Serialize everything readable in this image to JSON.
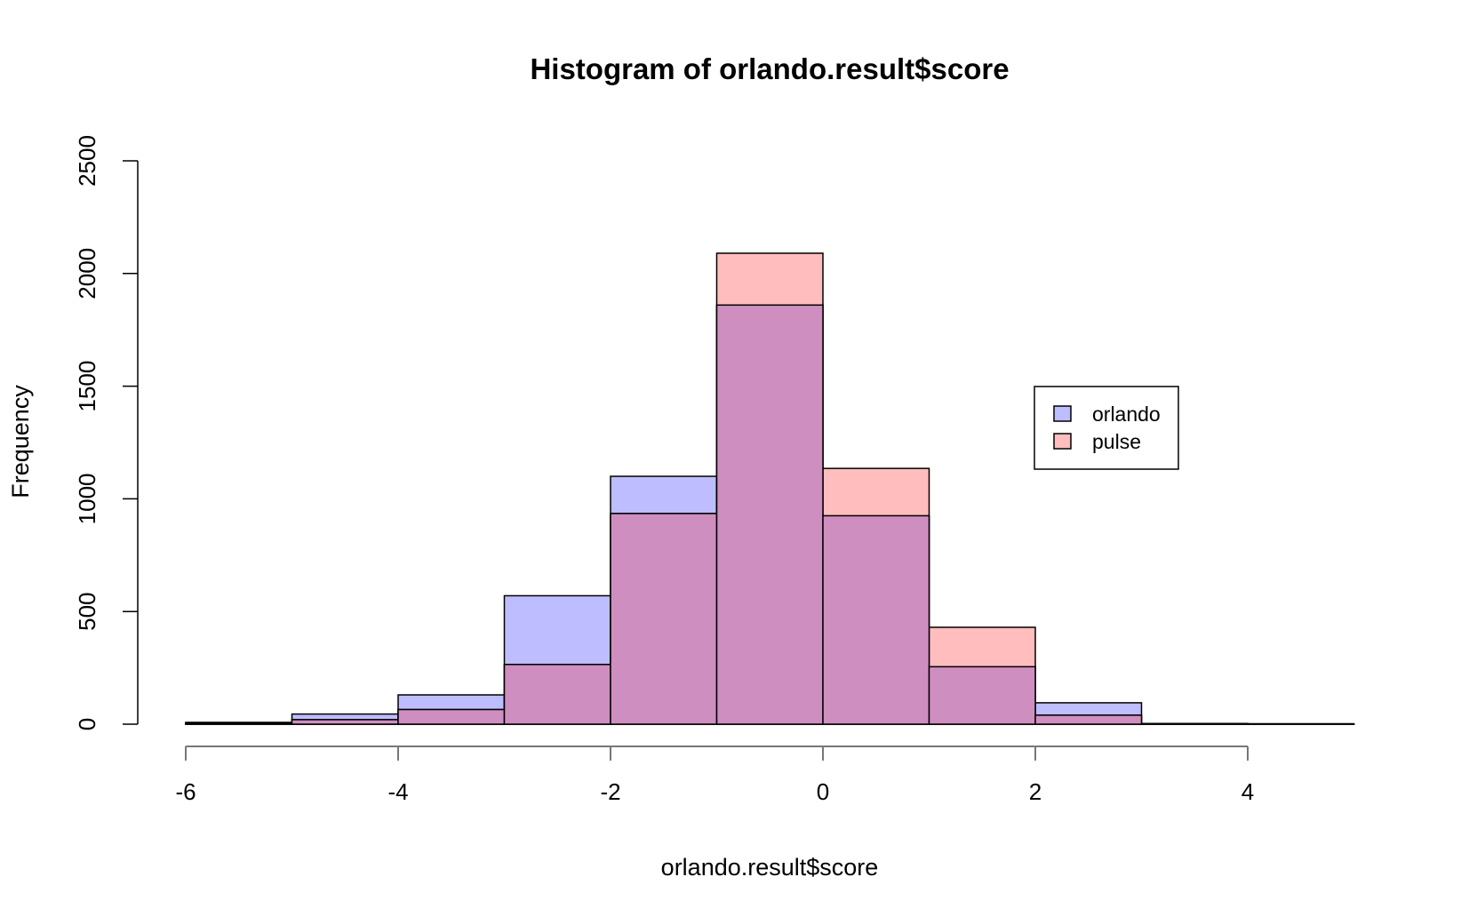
{
  "chart_data": {
    "type": "bar",
    "title": "Histogram of orlando.result$score",
    "xlabel": "orlando.result$score",
    "ylabel": "Frequency",
    "xlim": [
      -6,
      5
    ],
    "ylim": [
      0,
      2500
    ],
    "x_ticks": [
      "-6",
      "-4",
      "-2",
      "0",
      "2",
      "4"
    ],
    "y_ticks": [
      "0",
      "500",
      "1000",
      "1500",
      "2000",
      "2500"
    ],
    "bin_edges": [
      -6,
      -5,
      -4,
      -3,
      -2,
      -1,
      0,
      1,
      2,
      3,
      4,
      5
    ],
    "series": [
      {
        "name": "orlando",
        "color": "#bdbdff",
        "values": [
          5,
          45,
          130,
          570,
          1100,
          1860,
          925,
          255,
          95,
          3,
          2
        ]
      },
      {
        "name": "pulse",
        "color": "#ffbdbd",
        "overlap_color": "#cf8ec0",
        "values": [
          8,
          20,
          65,
          265,
          935,
          2090,
          1135,
          430,
          40,
          2,
          1
        ]
      }
    ],
    "legend": {
      "position": "right",
      "entries": [
        "orlando",
        "pulse"
      ]
    },
    "grid": false
  }
}
